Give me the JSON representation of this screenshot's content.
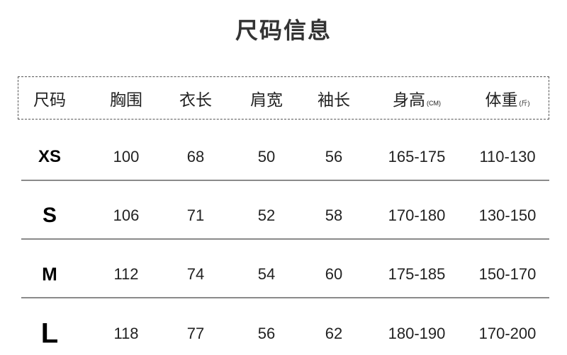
{
  "title": "尺码信息",
  "headers": [
    {
      "label": "尺码",
      "unit": ""
    },
    {
      "label": "胸围",
      "unit": ""
    },
    {
      "label": "衣长",
      "unit": ""
    },
    {
      "label": "肩宽",
      "unit": ""
    },
    {
      "label": "袖长",
      "unit": ""
    },
    {
      "label": "身高",
      "unit": "(CM)"
    },
    {
      "label": "体重",
      "unit": "(斤)"
    }
  ],
  "rows": [
    [
      "XS",
      "100",
      "68",
      "50",
      "56",
      "165-175",
      "110-130"
    ],
    [
      "S",
      "106",
      "71",
      "52",
      "58",
      "170-180",
      "130-150"
    ],
    [
      "M",
      "112",
      "74",
      "54",
      "60",
      "175-185",
      "150-170"
    ],
    [
      "L",
      "118",
      "77",
      "56",
      "62",
      "180-190",
      "170-200"
    ]
  ]
}
